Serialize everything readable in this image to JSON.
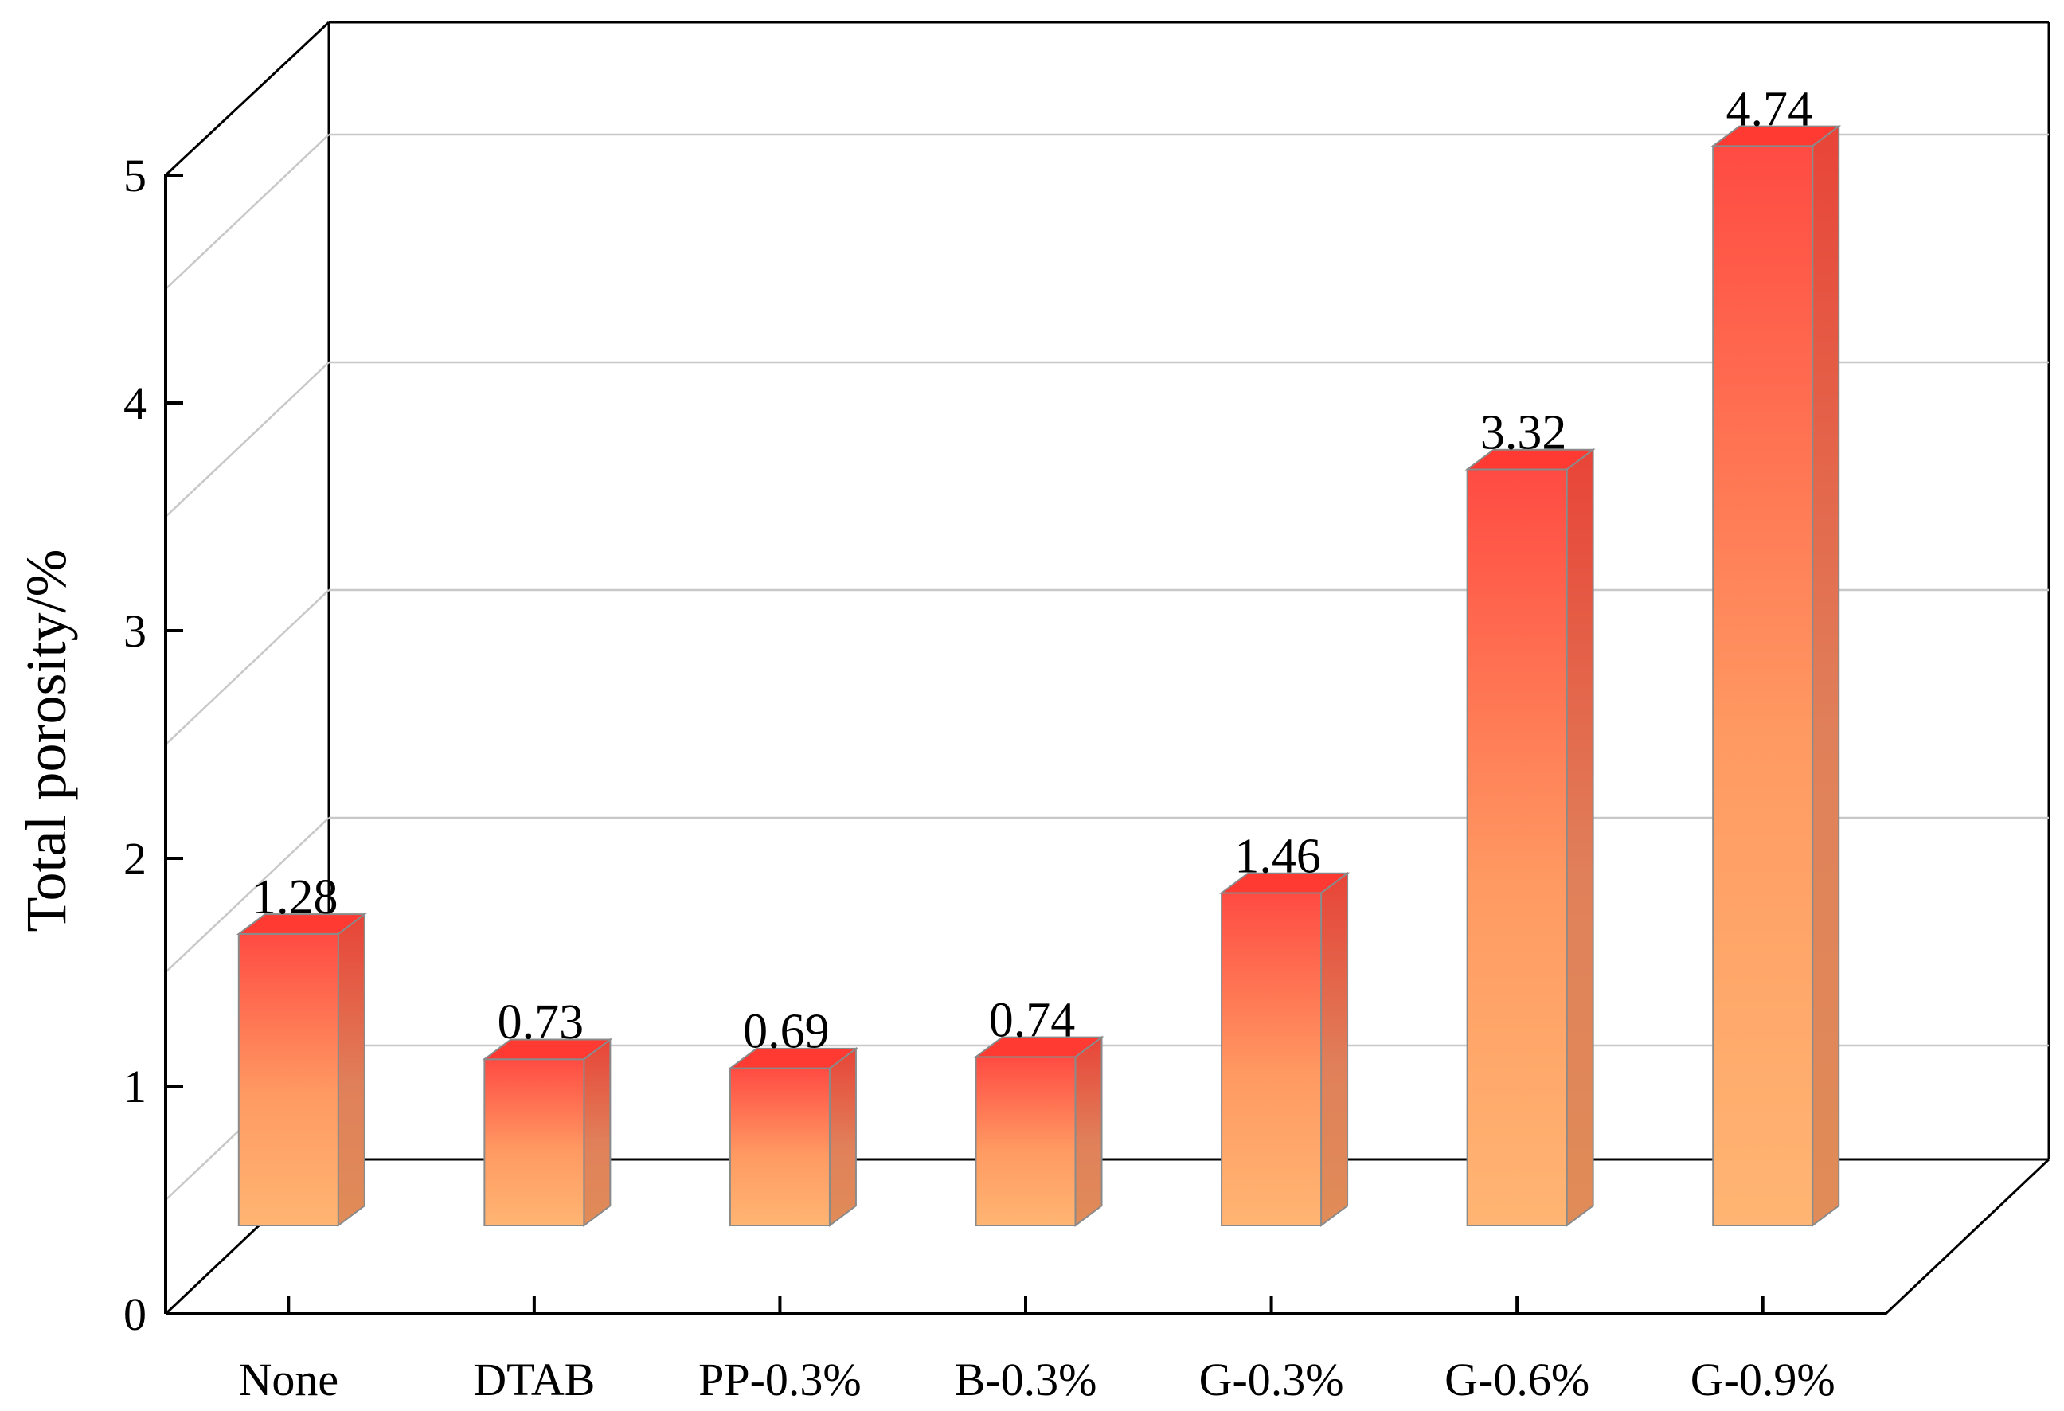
{
  "chart_data": {
    "type": "bar",
    "style": "3d",
    "title": "",
    "xlabel": "",
    "ylabel": "Total porosity/%",
    "ylim": [
      0,
      5
    ],
    "yticks": [
      "0",
      "1",
      "2",
      "3",
      "4",
      "5"
    ],
    "grid": true,
    "categories": [
      "None",
      "DTAB",
      "PP-0.3%",
      "B-0.3%",
      "G-0.3%",
      "G-0.6%",
      "G-0.9%"
    ],
    "values": [
      1.28,
      0.73,
      0.69,
      0.74,
      1.46,
      3.32,
      4.74
    ],
    "data_labels": [
      "1.28",
      "0.73",
      "0.69",
      "0.74",
      "1.46",
      "3.32",
      "4.74"
    ],
    "colors": {
      "bar_top": "#ff4b43",
      "bar_bottom": "#ffb573",
      "bar_side_top": "#e84437",
      "bar_side_bottom": "#e08c58",
      "bar_cap": "#ff3a32",
      "grid": "#c8c8c8",
      "axis": "#000000"
    }
  }
}
